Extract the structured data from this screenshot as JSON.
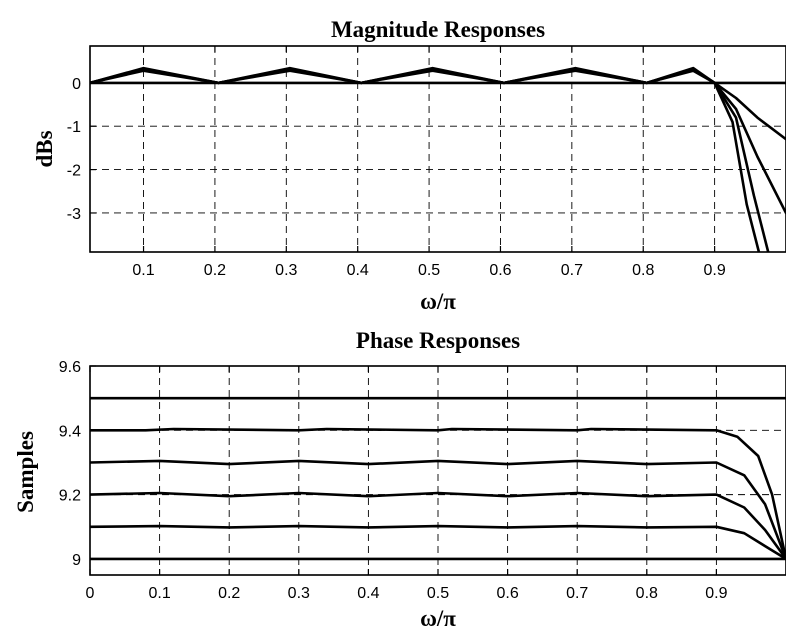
{
  "chart_data": [
    {
      "type": "line",
      "title": "Magnitude Responses",
      "xlabel": "ω/π",
      "ylabel": "dBs",
      "xlim": [
        0.025,
        1.0
      ],
      "ylim": [
        -3.9,
        0.85
      ],
      "grid": true,
      "x_ticks": [
        0.1,
        0.2,
        0.3,
        0.4,
        0.5,
        0.6,
        0.7,
        0.8,
        0.9
      ],
      "x_tick_labels": [
        "0.1",
        "0.2",
        "0.3",
        "0.4",
        "0.5",
        "0.6",
        "0.7",
        "0.8",
        "0.9"
      ],
      "y_ticks": [
        0,
        -1,
        -2,
        -3
      ],
      "y_tick_labels": [
        "0",
        "-1",
        "-2",
        "-3"
      ],
      "series": [
        {
          "x": [
            0.025,
            0.9,
            1.0
          ],
          "y": [
            0,
            0,
            0
          ]
        },
        {
          "x": [
            0.025,
            0.1,
            0.205,
            0.305,
            0.405,
            0.505,
            0.605,
            0.705,
            0.805,
            0.87,
            0.9,
            0.93,
            0.96,
            1.0
          ],
          "y": [
            0,
            0.28,
            0,
            0.28,
            0,
            0.28,
            0,
            0.28,
            0,
            0.28,
            0,
            -0.35,
            -0.8,
            -1.3
          ]
        },
        {
          "x": [
            0.025,
            0.1,
            0.205,
            0.305,
            0.405,
            0.505,
            0.605,
            0.705,
            0.805,
            0.87,
            0.9,
            0.93,
            0.96,
            1.0
          ],
          "y": [
            0,
            0.3,
            0,
            0.3,
            0,
            0.3,
            0,
            0.3,
            0,
            0.3,
            0,
            -0.6,
            -1.7,
            -3.0
          ]
        },
        {
          "x": [
            0.025,
            0.1,
            0.205,
            0.305,
            0.405,
            0.505,
            0.605,
            0.705,
            0.805,
            0.87,
            0.9,
            0.93,
            0.955,
            0.975
          ],
          "y": [
            0,
            0.32,
            0,
            0.32,
            0,
            0.32,
            0,
            0.32,
            0,
            0.32,
            0,
            -0.8,
            -2.6,
            -3.9
          ]
        },
        {
          "x": [
            0.025,
            0.1,
            0.205,
            0.305,
            0.405,
            0.505,
            0.605,
            0.705,
            0.805,
            0.87,
            0.9,
            0.925,
            0.945,
            0.962
          ],
          "y": [
            0,
            0.34,
            0,
            0.34,
            0,
            0.34,
            0,
            0.34,
            0,
            0.34,
            0,
            -0.9,
            -2.8,
            -3.9
          ]
        }
      ]
    },
    {
      "type": "line",
      "title": "Phase Responses",
      "xlabel": "ω/π",
      "ylabel": "Samples",
      "xlim": [
        0,
        1.0
      ],
      "ylim": [
        8.95,
        9.6
      ],
      "grid": true,
      "x_ticks": [
        0,
        0.1,
        0.2,
        0.3,
        0.4,
        0.5,
        0.6,
        0.7,
        0.8,
        0.9
      ],
      "x_tick_labels": [
        "0",
        "0.1",
        "0.2",
        "0.3",
        "0.4",
        "0.5",
        "0.6",
        "0.7",
        "0.8",
        "0.9"
      ],
      "y_ticks": [
        9,
        9.2,
        9.4,
        9.6
      ],
      "y_tick_labels": [
        "9",
        "9.2",
        "9.4",
        "9.6"
      ],
      "series": [
        {
          "x": [
            0,
            1.0
          ],
          "y": [
            9.5,
            9.5
          ]
        },
        {
          "x": [
            0,
            0.08,
            0.12,
            0.3,
            0.34,
            0.5,
            0.52,
            0.7,
            0.72,
            0.9,
            0.93,
            0.96,
            0.98,
            1.0
          ],
          "y": [
            9.4,
            9.4,
            9.404,
            9.4,
            9.404,
            9.4,
            9.404,
            9.4,
            9.404,
            9.4,
            9.38,
            9.32,
            9.2,
            9.0
          ]
        },
        {
          "x": [
            0,
            0.1,
            0.2,
            0.3,
            0.4,
            0.5,
            0.6,
            0.7,
            0.8,
            0.9,
            0.94,
            0.97,
            1.0
          ],
          "y": [
            9.3,
            9.305,
            9.295,
            9.305,
            9.295,
            9.305,
            9.295,
            9.305,
            9.295,
            9.3,
            9.26,
            9.17,
            9.0
          ]
        },
        {
          "x": [
            0,
            0.1,
            0.2,
            0.3,
            0.4,
            0.5,
            0.6,
            0.7,
            0.8,
            0.9,
            0.94,
            0.97,
            1.0
          ],
          "y": [
            9.2,
            9.205,
            9.195,
            9.205,
            9.195,
            9.205,
            9.195,
            9.205,
            9.195,
            9.2,
            9.16,
            9.09,
            9.0
          ]
        },
        {
          "x": [
            0,
            0.1,
            0.2,
            0.3,
            0.4,
            0.5,
            0.6,
            0.7,
            0.8,
            0.9,
            0.94,
            0.97,
            1.0
          ],
          "y": [
            9.1,
            9.102,
            9.098,
            9.102,
            9.098,
            9.102,
            9.098,
            9.102,
            9.098,
            9.1,
            9.08,
            9.04,
            9.0
          ]
        },
        {
          "x": [
            0,
            1.0
          ],
          "y": [
            9.0,
            9.0
          ]
        }
      ]
    }
  ]
}
